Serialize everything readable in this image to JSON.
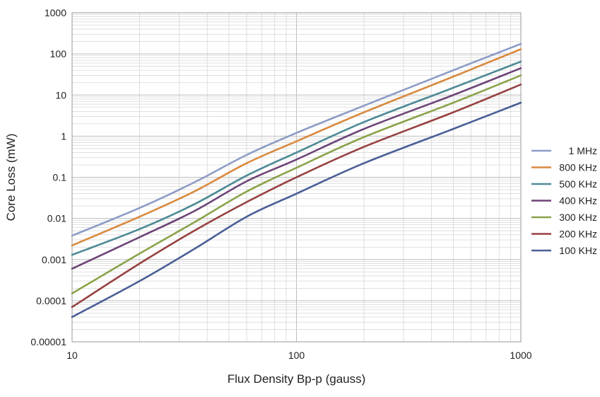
{
  "chart_data": {
    "type": "line",
    "xlabel": "Flux Density Bp-p (gauss)",
    "ylabel": "Core Loss (mW)",
    "x_scale": "log",
    "y_scale": "log",
    "xlim": [
      10,
      1000
    ],
    "ylim": [
      1e-05,
      1000
    ],
    "x_ticks": [
      {
        "value": 10,
        "label": "10"
      },
      {
        "value": 100,
        "label": "100"
      },
      {
        "value": 1000,
        "label": "1000"
      }
    ],
    "y_ticks": [
      {
        "value": 1e-05,
        "label": "0.00001"
      },
      {
        "value": 0.0001,
        "label": "0.0001"
      },
      {
        "value": 0.001,
        "label": "0.001"
      },
      {
        "value": 0.01,
        "label": "0.01"
      },
      {
        "value": 0.1,
        "label": "0.1"
      },
      {
        "value": 1,
        "label": "1"
      },
      {
        "value": 10,
        "label": "10"
      },
      {
        "value": 100,
        "label": "100"
      },
      {
        "value": 1000,
        "label": "1000"
      }
    ],
    "grid": true,
    "legend_position": "right",
    "series": [
      {
        "name": "1 MHz",
        "color": "#8e9cc6",
        "points": [
          [
            10,
            0.0038
          ],
          [
            20,
            0.018
          ],
          [
            35,
            0.075
          ],
          [
            60,
            0.35
          ],
          [
            100,
            1.2
          ],
          [
            200,
            5.5
          ],
          [
            500,
            40
          ],
          [
            1000,
            175
          ]
        ]
      },
      {
        "name": "800 KHz",
        "color": "#d98a3f",
        "points": [
          [
            10,
            0.0022
          ],
          [
            20,
            0.011
          ],
          [
            35,
            0.045
          ],
          [
            60,
            0.22
          ],
          [
            100,
            0.75
          ],
          [
            200,
            3.8
          ],
          [
            500,
            28
          ],
          [
            1000,
            130
          ]
        ]
      },
      {
        "name": "500 KHz",
        "color": "#4d8a96",
        "points": [
          [
            10,
            0.0013
          ],
          [
            20,
            0.0055
          ],
          [
            35,
            0.022
          ],
          [
            60,
            0.11
          ],
          [
            100,
            0.4
          ],
          [
            200,
            2.2
          ],
          [
            500,
            15
          ],
          [
            1000,
            65
          ]
        ]
      },
      {
        "name": "400 KHz",
        "color": "#6e4478",
        "points": [
          [
            10,
            0.0006
          ],
          [
            20,
            0.0035
          ],
          [
            35,
            0.015
          ],
          [
            60,
            0.08
          ],
          [
            100,
            0.27
          ],
          [
            200,
            1.5
          ],
          [
            500,
            10
          ],
          [
            1000,
            45
          ]
        ]
      },
      {
        "name": "300 KHz",
        "color": "#8aa34a",
        "points": [
          [
            10,
            0.00015
          ],
          [
            20,
            0.0014
          ],
          [
            35,
            0.008
          ],
          [
            60,
            0.045
          ],
          [
            100,
            0.17
          ],
          [
            200,
            0.95
          ],
          [
            500,
            6.5
          ],
          [
            1000,
            30
          ]
        ]
      },
      {
        "name": "200 KHz",
        "color": "#974040",
        "points": [
          [
            10,
            7e-05
          ],
          [
            20,
            0.0008
          ],
          [
            35,
            0.005
          ],
          [
            60,
            0.025
          ],
          [
            100,
            0.1
          ],
          [
            200,
            0.55
          ],
          [
            500,
            3.8
          ],
          [
            1000,
            18
          ]
        ]
      },
      {
        "name": "100 KHz",
        "color": "#4a5f96",
        "points": [
          [
            10,
            4e-05
          ],
          [
            20,
            0.0003
          ],
          [
            35,
            0.0018
          ],
          [
            60,
            0.011
          ],
          [
            100,
            0.04
          ],
          [
            200,
            0.22
          ],
          [
            500,
            1.5
          ],
          [
            1000,
            6.5
          ]
        ]
      }
    ]
  }
}
